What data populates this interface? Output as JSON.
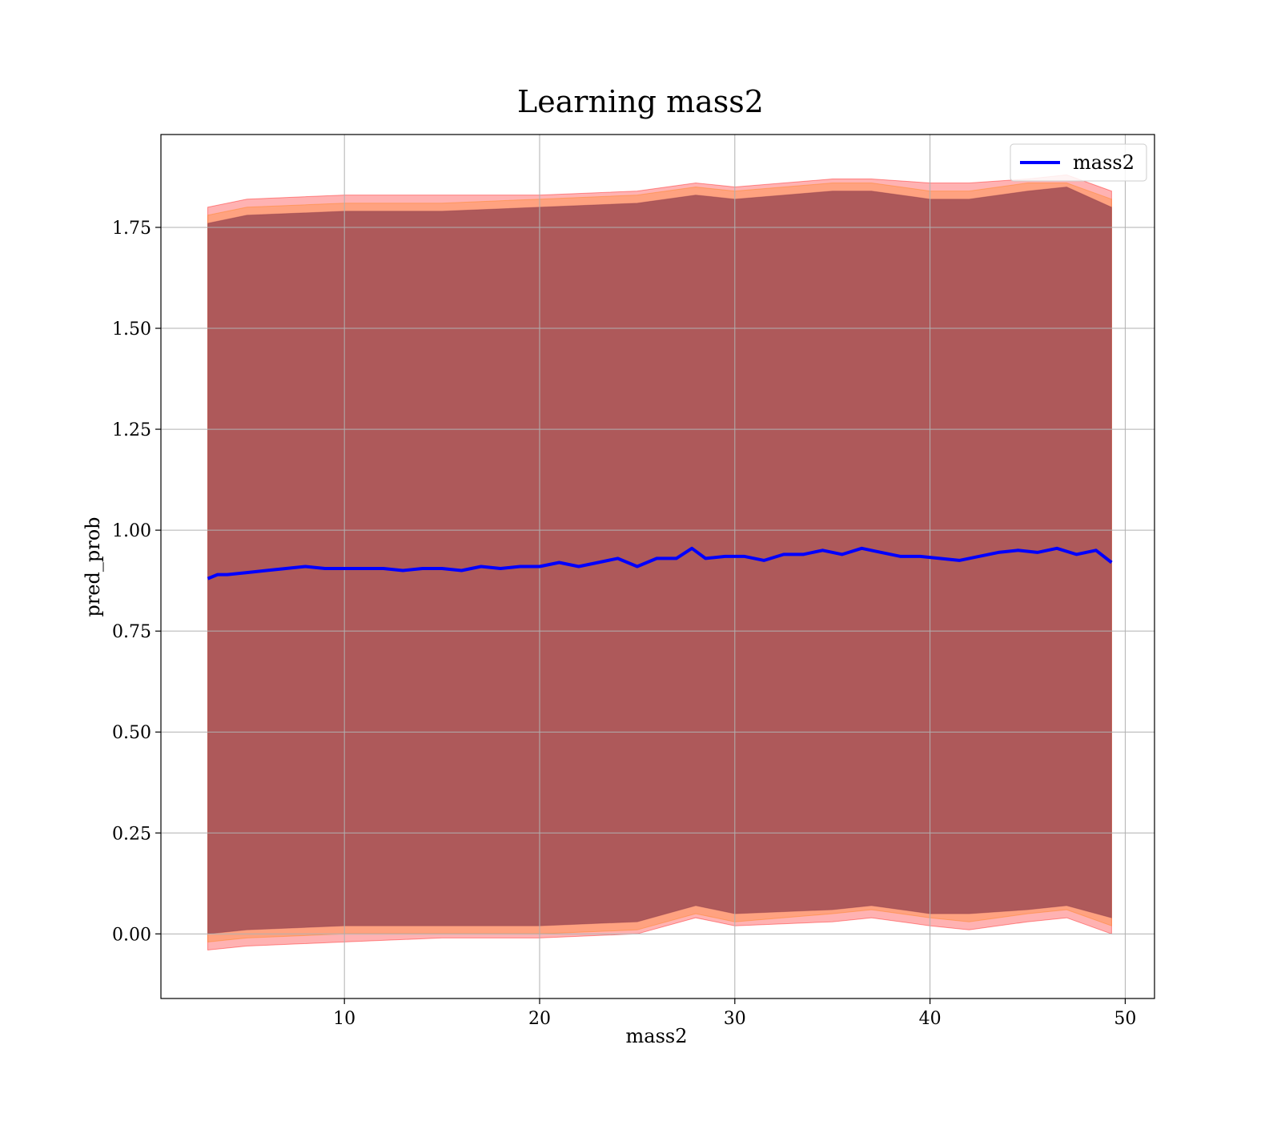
{
  "chart_data": {
    "type": "line",
    "title": "Learning mass2",
    "xlabel": "mass2",
    "ylabel": "pred_prob",
    "xlim": [
      0.6,
      51.5
    ],
    "ylim": [
      -0.16,
      1.98
    ],
    "xticks": [
      10,
      20,
      30,
      40,
      50
    ],
    "xtick_labels": [
      "10",
      "20",
      "30",
      "40",
      "50"
    ],
    "yticks": [
      0.0,
      0.25,
      0.5,
      0.75,
      1.0,
      1.25,
      1.5,
      1.75
    ],
    "ytick_labels": [
      "0.00",
      "0.25",
      "0.50",
      "0.75",
      "1.00",
      "1.25",
      "1.50",
      "1.75"
    ],
    "grid": true,
    "legend": {
      "position": "top-right",
      "entries": [
        {
          "name": "mass2",
          "color": "#0000ff"
        }
      ]
    },
    "series": [
      {
        "name": "mass2",
        "color": "#0000ff",
        "x": [
          3.0,
          3.5,
          4.0,
          5.0,
          6.0,
          7.0,
          8.0,
          9.0,
          10.0,
          11.0,
          12.0,
          13.0,
          14.0,
          15.0,
          16.0,
          17.0,
          18.0,
          19.0,
          20.0,
          21.0,
          22.0,
          23.0,
          24.0,
          25.0,
          26.0,
          27.0,
          27.8,
          28.5,
          29.5,
          30.5,
          31.5,
          32.5,
          33.5,
          34.5,
          35.5,
          36.5,
          37.5,
          38.5,
          39.5,
          40.5,
          41.5,
          42.5,
          43.5,
          44.5,
          45.5,
          46.5,
          47.5,
          48.5,
          49.3
        ],
        "values": [
          0.88,
          0.89,
          0.89,
          0.895,
          0.9,
          0.905,
          0.91,
          0.905,
          0.905,
          0.905,
          0.905,
          0.9,
          0.905,
          0.905,
          0.9,
          0.91,
          0.905,
          0.91,
          0.91,
          0.92,
          0.91,
          0.92,
          0.93,
          0.91,
          0.93,
          0.93,
          0.955,
          0.93,
          0.935,
          0.935,
          0.925,
          0.94,
          0.94,
          0.95,
          0.94,
          0.955,
          0.945,
          0.935,
          0.935,
          0.93,
          0.925,
          0.935,
          0.945,
          0.95,
          0.945,
          0.955,
          0.94,
          0.95,
          0.92
        ]
      }
    ],
    "bands": [
      {
        "name": "outer band",
        "color": "#ff0000",
        "opacity": 0.3,
        "x": [
          3.0,
          5.0,
          10.0,
          15.0,
          20.0,
          25.0,
          28.0,
          30.0,
          35.0,
          37.0,
          40.0,
          42.0,
          45.0,
          47.0,
          49.3
        ],
        "upper": [
          1.8,
          1.82,
          1.83,
          1.83,
          1.83,
          1.84,
          1.86,
          1.85,
          1.87,
          1.87,
          1.86,
          1.86,
          1.87,
          1.88,
          1.84
        ],
        "lower": [
          -0.04,
          -0.03,
          -0.02,
          -0.01,
          -0.01,
          0.0,
          0.04,
          0.02,
          0.03,
          0.04,
          0.02,
          0.01,
          0.03,
          0.04,
          0.0
        ]
      },
      {
        "name": "middle band",
        "color": "#ff7f0e",
        "opacity": 0.3,
        "x": [
          3.0,
          5.0,
          10.0,
          15.0,
          20.0,
          25.0,
          28.0,
          30.0,
          35.0,
          37.0,
          40.0,
          42.0,
          45.0,
          47.0,
          49.3
        ],
        "upper": [
          1.78,
          1.8,
          1.81,
          1.81,
          1.82,
          1.83,
          1.85,
          1.84,
          1.86,
          1.86,
          1.84,
          1.84,
          1.86,
          1.86,
          1.82
        ],
        "lower": [
          -0.02,
          -0.01,
          0.0,
          0.0,
          0.0,
          0.01,
          0.05,
          0.03,
          0.05,
          0.06,
          0.04,
          0.03,
          0.05,
          0.06,
          0.02
        ]
      },
      {
        "name": "inner band",
        "color": "#8b3a4a",
        "opacity": 0.7,
        "x": [
          3.0,
          5.0,
          10.0,
          15.0,
          20.0,
          25.0,
          28.0,
          30.0,
          35.0,
          37.0,
          40.0,
          42.0,
          45.0,
          47.0,
          49.3
        ],
        "upper": [
          1.76,
          1.78,
          1.79,
          1.79,
          1.8,
          1.81,
          1.83,
          1.82,
          1.84,
          1.84,
          1.82,
          1.82,
          1.84,
          1.85,
          1.8
        ],
        "lower": [
          0.0,
          0.01,
          0.02,
          0.02,
          0.02,
          0.03,
          0.07,
          0.05,
          0.06,
          0.07,
          0.05,
          0.05,
          0.06,
          0.07,
          0.04
        ]
      }
    ]
  }
}
